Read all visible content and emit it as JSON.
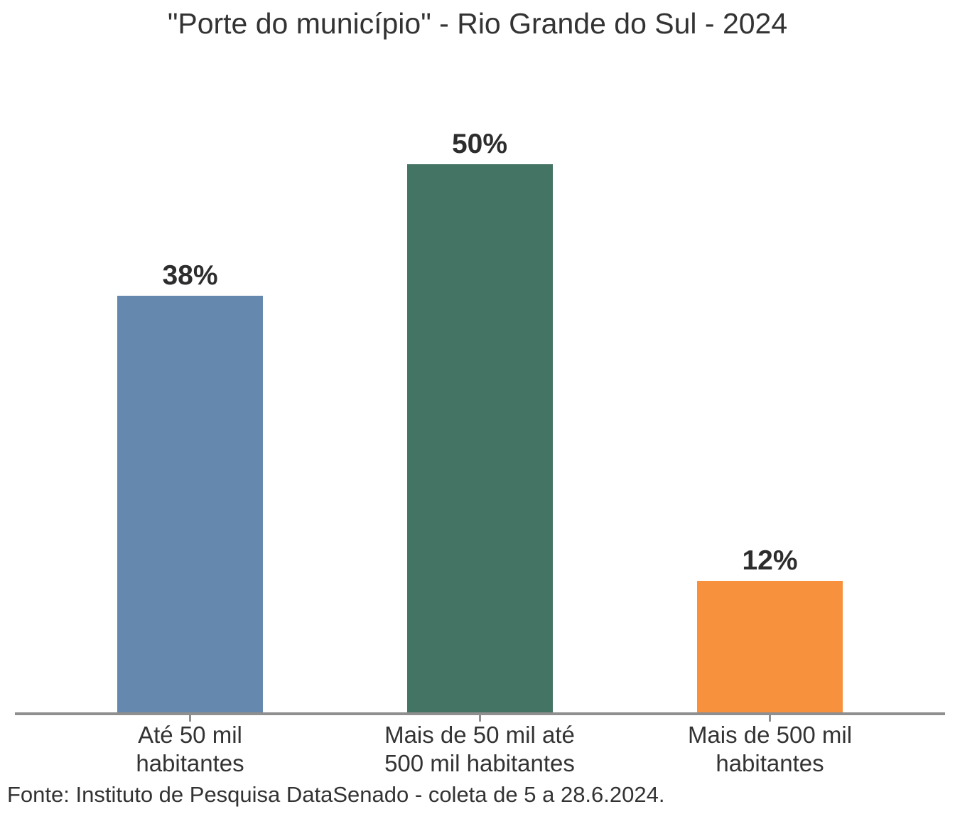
{
  "chart_data": {
    "type": "bar",
    "title": "\"Porte do município\" - Rio Grande do Sul - 2024",
    "categories": [
      "Até 50 mil habitantes",
      "Mais de 50 mil até 500 mil habitantes",
      "Mais de 500 mil habitantes"
    ],
    "category_labels": [
      "Até 50 mil\nhabitantes",
      "Mais de 50 mil até\n500 mil habitantes",
      "Mais de 500 mil\nhabitantes"
    ],
    "values": [
      38,
      50,
      12
    ],
    "value_labels": [
      "38%",
      "50%",
      "12%"
    ],
    "unit": "%",
    "colors": [
      "#6589ae",
      "#447463",
      "#f8913e"
    ],
    "xlabel": "",
    "ylabel": "",
    "ylim": [
      0,
      50
    ],
    "grid": "off",
    "legend": "none",
    "axis_color": "#8f8f8f",
    "source": "Fonte: Instituto de Pesquisa DataSenado - coleta de 5 a 28.6.2024."
  }
}
